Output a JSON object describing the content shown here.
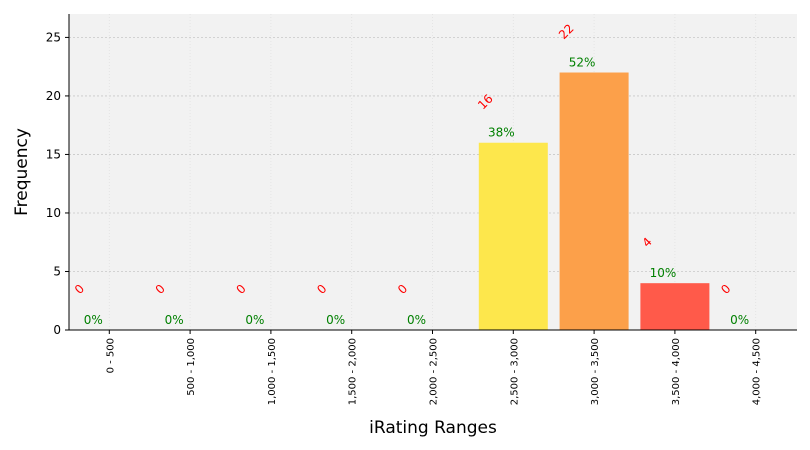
{
  "chart_data": {
    "type": "bar",
    "title": "",
    "xlabel": "iRating Ranges",
    "ylabel": "Frequency",
    "ylim": [
      0,
      27
    ],
    "yticks": [
      0,
      5,
      10,
      15,
      20,
      25
    ],
    "grid": true,
    "categories": [
      "0 - 500",
      "500 - 1,000",
      "1,000 - 1,500",
      "1,500 - 2,000",
      "2,000 - 2,500",
      "2,500 - 3,000",
      "3,000 - 3,500",
      "3,500 - 4,000",
      "4,000 - 4,500"
    ],
    "values": [
      0,
      0,
      0,
      0,
      0,
      16,
      22,
      4,
      0
    ],
    "count_labels": [
      "0",
      "0",
      "0",
      "0",
      "0",
      "16",
      "22",
      "4",
      "0"
    ],
    "percent_labels": [
      "0%",
      "0%",
      "0%",
      "0%",
      "0%",
      "38%",
      "52%",
      "10%",
      "0%"
    ],
    "bar_colors": [
      "#1a9850",
      "#66bd63",
      "#a6d96a",
      "#d9ef8b",
      "#fee08b",
      "#fde74c",
      "#fca04a",
      "#ff5a4a",
      "#d73027"
    ],
    "count_label_color": "#ff0000",
    "percent_label_color": "#008000",
    "plot_background": "#f2f2f2"
  }
}
